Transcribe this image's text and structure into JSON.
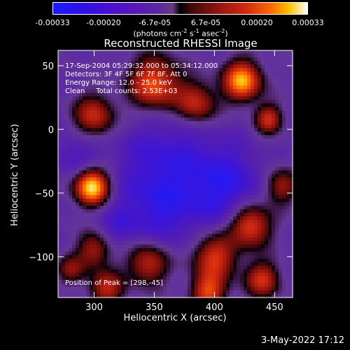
{
  "colorbar": {
    "ticks": [
      "-0.00033",
      "-0.00020",
      "-6.7e-05",
      "6.7e-05",
      "0.00020",
      "0.00033"
    ],
    "unit_prefix": "(photons cm",
    "unit_exp1": "-2",
    "unit_mid1": " s",
    "unit_exp2": "-1",
    "unit_mid2": " asec",
    "unit_exp3": "-2",
    "unit_suffix": ")",
    "range": [
      -0.00033,
      0.00033
    ],
    "colors": [
      "#1b1bff",
      "#5a16b8",
      "#000000",
      "#d22a10",
      "#ff6a00",
      "#ffffff"
    ]
  },
  "chart_data": {
    "type": "heatmap",
    "title": "Reconstructed RHESSI Image",
    "xlabel": "Heliocentric X (arcsec)",
    "ylabel": "Heliocentric Y (arcsec)",
    "xlim": [
      270,
      465
    ],
    "ylim": [
      -132,
      62
    ],
    "xticks": [
      300,
      350,
      400,
      450
    ],
    "yticks": [
      50,
      0,
      -50,
      -100
    ],
    "annotations": [
      "17-Sep-2004 05:29:32.000 to 05:34:12.000",
      "Detectors: 3F 4F 5F 6F 7F 8F, Att 0",
      "Energy Range: 12.0 - 25.0 keV",
      "Clean     Total counts: 2.53E+03"
    ],
    "peak_label": "Position of Peak = [298,-45]",
    "peak_position": [
      298,
      -45
    ],
    "sources": [
      {
        "x": 298,
        "y": -45,
        "amp": 1.0,
        "r": 10
      },
      {
        "x": 300,
        "y": 10,
        "amp": 0.55,
        "r": 12
      },
      {
        "x": 350,
        "y": 35,
        "amp": 0.7,
        "r": 15
      },
      {
        "x": 385,
        "y": 20,
        "amp": 0.55,
        "r": 12
      },
      {
        "x": 423,
        "y": 38,
        "amp": 0.85,
        "r": 11
      },
      {
        "x": 445,
        "y": 8,
        "amp": 0.55,
        "r": 8
      },
      {
        "x": 430,
        "y": -75,
        "amp": 0.7,
        "r": 12
      },
      {
        "x": 400,
        "y": -100,
        "amp": 0.6,
        "r": 13
      },
      {
        "x": 345,
        "y": -105,
        "amp": 0.55,
        "r": 12
      },
      {
        "x": 300,
        "y": -95,
        "amp": 0.45,
        "r": 10
      },
      {
        "x": 310,
        "y": -125,
        "amp": 0.5,
        "r": 10
      },
      {
        "x": 395,
        "y": -128,
        "amp": 0.6,
        "r": 10
      },
      {
        "x": 440,
        "y": -118,
        "amp": 0.55,
        "r": 10
      },
      {
        "x": 455,
        "y": -45,
        "amp": 0.45,
        "r": 10
      },
      {
        "x": 280,
        "y": -110,
        "amp": 0.35,
        "r": 8
      }
    ],
    "negatives": [
      {
        "x": 360,
        "y": -25,
        "amp": 0.7,
        "r": 30
      },
      {
        "x": 410,
        "y": -45,
        "amp": 0.85,
        "r": 22
      },
      {
        "x": 355,
        "y": -65,
        "amp": 0.6,
        "r": 22
      },
      {
        "x": 285,
        "y": -20,
        "amp": 0.5,
        "r": 14
      },
      {
        "x": 320,
        "y": -75,
        "amp": 0.4,
        "r": 12
      }
    ]
  },
  "footer": {
    "date": "3-May-2022 17:12"
  }
}
